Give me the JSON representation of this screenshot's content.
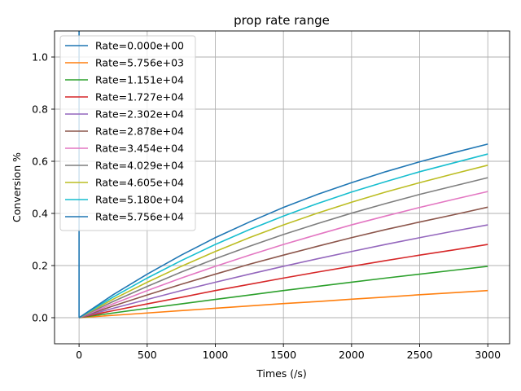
{
  "chart_data": {
    "type": "line",
    "title": "prop rate range",
    "xlabel": "Times (/s)",
    "ylabel": "Conversion %",
    "xlim": [
      -180,
      3160
    ],
    "ylim": [
      -0.1,
      1.1
    ],
    "x_ticks": [
      0,
      500,
      1000,
      1500,
      2000,
      2500,
      3000
    ],
    "x_tick_labels": [
      "0",
      "500",
      "1000",
      "1500",
      "2000",
      "2500",
      "3000"
    ],
    "y_ticks": [
      0.0,
      0.2,
      0.4,
      0.6,
      0.8,
      1.0
    ],
    "y_tick_labels": [
      "0.0",
      "0.2",
      "0.4",
      "0.6",
      "0.8",
      "1.0"
    ],
    "grid": true,
    "legend_position": "top-left",
    "x": [
      0,
      250,
      500,
      750,
      1000,
      1250,
      1500,
      1750,
      2000,
      2250,
      2500,
      2750,
      3000
    ],
    "series": [
      {
        "name": "Rate=0.000e+00",
        "color": "#1f77b4",
        "x": [
          0,
          0,
          0
        ],
        "values": [
          0,
          1.0,
          1.1
        ]
      },
      {
        "name": "Rate=5.756e+03",
        "color": "#ff7f0e",
        "values": [
          0,
          0.009,
          0.018,
          0.027,
          0.036,
          0.045,
          0.054,
          0.062,
          0.071,
          0.079,
          0.088,
          0.096,
          0.104
        ]
      },
      {
        "name": "Rate=1.151e+04",
        "color": "#2ca02c",
        "values": [
          0,
          0.018,
          0.036,
          0.053,
          0.07,
          0.087,
          0.104,
          0.12,
          0.136,
          0.152,
          0.167,
          0.182,
          0.197
        ]
      },
      {
        "name": "Rate=1.727e+04",
        "color": "#d62728",
        "values": [
          0,
          0.027,
          0.053,
          0.078,
          0.104,
          0.128,
          0.152,
          0.175,
          0.197,
          0.219,
          0.24,
          0.26,
          0.281
        ]
      },
      {
        "name": "Rate=2.302e+04",
        "color": "#9467bd",
        "values": [
          0,
          0.036,
          0.07,
          0.104,
          0.136,
          0.167,
          0.197,
          0.226,
          0.254,
          0.281,
          0.307,
          0.332,
          0.356
        ]
      },
      {
        "name": "Rate=2.878e+04",
        "color": "#8c564b",
        "values": [
          0,
          0.045,
          0.087,
          0.128,
          0.167,
          0.205,
          0.24,
          0.274,
          0.307,
          0.338,
          0.367,
          0.395,
          0.424
        ]
      },
      {
        "name": "Rate=3.454e+04",
        "color": "#e377c2",
        "values": [
          0,
          0.053,
          0.104,
          0.152,
          0.197,
          0.24,
          0.281,
          0.319,
          0.356,
          0.39,
          0.423,
          0.454,
          0.484
        ]
      },
      {
        "name": "Rate=4.029e+04",
        "color": "#7f7f7f",
        "values": [
          0,
          0.062,
          0.12,
          0.175,
          0.226,
          0.274,
          0.319,
          0.361,
          0.401,
          0.438,
          0.473,
          0.505,
          0.537
        ]
      },
      {
        "name": "Rate=4.605e+04",
        "color": "#bcbd22",
        "values": [
          0,
          0.071,
          0.136,
          0.197,
          0.254,
          0.307,
          0.356,
          0.401,
          0.443,
          0.482,
          0.518,
          0.552,
          0.585
        ]
      },
      {
        "name": "Rate=5.180e+04",
        "color": "#17becf",
        "values": [
          0,
          0.079,
          0.152,
          0.219,
          0.281,
          0.338,
          0.39,
          0.438,
          0.482,
          0.522,
          0.56,
          0.594,
          0.628
        ]
      },
      {
        "name": "Rate=5.756e+04",
        "color": "#1f77b4",
        "values": [
          0,
          0.088,
          0.167,
          0.24,
          0.307,
          0.367,
          0.423,
          0.473,
          0.518,
          0.56,
          0.598,
          0.633,
          0.666
        ]
      }
    ]
  }
}
